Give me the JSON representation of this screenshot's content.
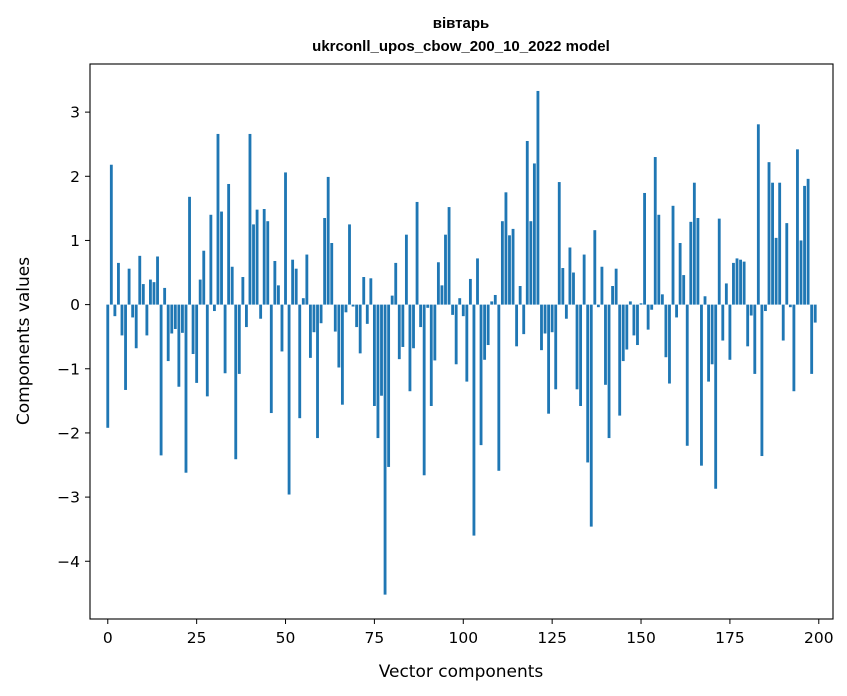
{
  "chart_data": {
    "type": "bar",
    "title": "вівтарь",
    "subtitle": "ukrconll_upos_cbow_200_10_2022 model",
    "xlabel": "Vector components",
    "ylabel": "Components values",
    "xlim": [
      -5,
      204
    ],
    "ylim": [
      -4.9,
      3.75
    ],
    "x_ticks": [
      0,
      25,
      50,
      75,
      100,
      125,
      150,
      175,
      200
    ],
    "y_ticks": [
      -4,
      -3,
      -2,
      -1,
      0,
      1,
      2,
      3
    ],
    "bar_color": "#1f77b4",
    "grid": false,
    "legend": "none",
    "values": [
      -1.92,
      2.18,
      -0.18,
      0.65,
      -0.48,
      -1.33,
      0.56,
      -0.2,
      -0.68,
      0.76,
      0.32,
      -0.48,
      0.39,
      0.35,
      0.75,
      -2.35,
      0.26,
      -0.88,
      -0.45,
      -0.38,
      -1.28,
      -0.44,
      -2.62,
      1.68,
      -0.77,
      -1.22,
      0.39,
      0.84,
      -1.43,
      1.4,
      -0.1,
      2.66,
      1.45,
      -1.07,
      1.88,
      0.59,
      -2.41,
      -1.08,
      0.43,
      -0.35,
      2.66,
      1.25,
      1.48,
      -0.22,
      1.49,
      1.3,
      -1.69,
      0.68,
      0.3,
      -0.73,
      2.06,
      -2.96,
      0.7,
      0.56,
      -1.77,
      0.1,
      0.78,
      -0.83,
      -0.43,
      -2.08,
      -0.29,
      1.35,
      1.99,
      0.96,
      -0.42,
      -0.98,
      -1.56,
      -0.12,
      1.25,
      -0.03,
      -0.35,
      -0.76,
      0.43,
      -0.3,
      0.41,
      -1.58,
      -2.08,
      -1.42,
      -4.52,
      -2.53,
      0.14,
      0.65,
      -0.85,
      -0.66,
      1.09,
      -1.35,
      -0.68,
      1.6,
      -0.35,
      -2.66,
      -0.05,
      -1.58,
      -0.87,
      0.66,
      0.3,
      1.09,
      1.52,
      -0.16,
      -0.93,
      0.1,
      -0.18,
      -1.2,
      0.4,
      -3.6,
      0.72,
      -2.19,
      -0.86,
      -0.63,
      0.05,
      0.15,
      -2.59,
      1.3,
      1.75,
      1.08,
      1.18,
      -0.65,
      0.29,
      -0.46,
      2.55,
      1.3,
      2.2,
      3.33,
      -0.71,
      -0.45,
      -1.7,
      -0.43,
      -1.32,
      1.91,
      0.57,
      -0.22,
      0.89,
      0.5,
      -1.32,
      -1.58,
      0.78,
      -2.46,
      -3.46,
      1.16,
      -0.04,
      0.59,
      -1.25,
      -2.08,
      0.29,
      0.56,
      -1.73,
      -0.88,
      -0.7,
      0.05,
      -0.48,
      -0.63,
      0.02,
      1.74,
      -0.39,
      -0.08,
      2.3,
      1.4,
      0.16,
      -0.82,
      -1.23,
      1.54,
      -0.2,
      0.96,
      0.46,
      -2.2,
      1.29,
      1.9,
      1.35,
      -2.51,
      0.13,
      -1.2,
      -0.93,
      -2.87,
      1.34,
      -0.56,
      0.33,
      -0.86,
      0.65,
      0.72,
      0.7,
      0.67,
      -0.65,
      -0.17,
      -1.08,
      2.81,
      -2.36,
      -0.1,
      2.22,
      1.9,
      1.04,
      1.9,
      -0.56,
      1.27,
      -0.04,
      -1.35,
      2.42,
      1.0,
      1.85,
      1.96,
      -1.08,
      -0.28
    ]
  }
}
